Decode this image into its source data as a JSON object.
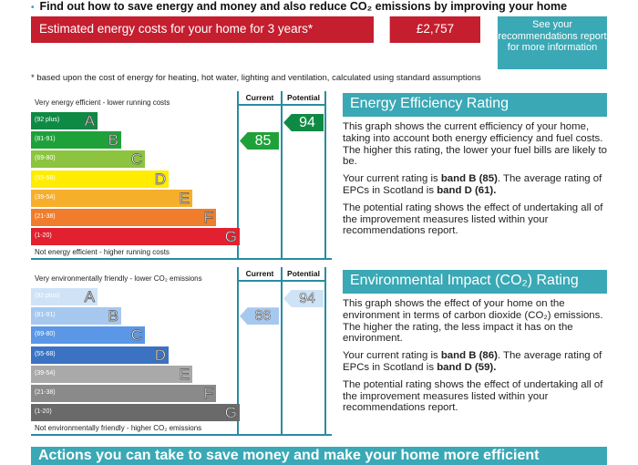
{
  "intro": {
    "bullet": "•",
    "text": "Find out how to save energy and money and also reduce CO₂ emissions by improving your home"
  },
  "cost": {
    "label": "Estimated energy costs for your home for 3 years*",
    "value": "£2,757",
    "see_recommendations": "See your recommendations report for more information",
    "footnote": "* based upon the cost of energy for heating, hot water, lighting and ventilation, calculated using standard assumptions"
  },
  "energy_chart": {
    "top_label": "Very energy efficient - lower running costs",
    "bottom_label": "Not energy efficient - higher running costs",
    "col_current": "Current",
    "col_potential": "Potential",
    "current_value": "85",
    "potential_value": "94",
    "current_color": "#1fa13a",
    "potential_color": "#0f8a44",
    "bands": [
      {
        "letter": "A",
        "range": "(92 plus)",
        "color": "#0f8a44"
      },
      {
        "letter": "B",
        "range": "(81-91)",
        "color": "#1fa13a"
      },
      {
        "letter": "C",
        "range": "(69-80)",
        "color": "#8cc43f"
      },
      {
        "letter": "D",
        "range": "(55-68)",
        "color": "#ffec00"
      },
      {
        "letter": "E",
        "range": "(39-54)",
        "color": "#f7ae2b"
      },
      {
        "letter": "F",
        "range": "(21-38)",
        "color": "#ef7d2c"
      },
      {
        "letter": "G",
        "range": "(1-20)",
        "color": "#e3202f"
      }
    ]
  },
  "eco_chart": {
    "top_label": "Very environmentally friendly - lower CO₂ emissions",
    "bottom_label": "Not environmentally friendly - higher CO₂ emissions",
    "col_current": "Current",
    "col_potential": "Potential",
    "current_value": "86",
    "potential_value": "94",
    "current_color": "#a6c8ef",
    "potential_color": "#cfe3f6",
    "bands": [
      {
        "letter": "A",
        "range": "(92 plus)",
        "color": "#cfe3f6"
      },
      {
        "letter": "B",
        "range": "(81-91)",
        "color": "#a6c8ef"
      },
      {
        "letter": "C",
        "range": "(69-80)",
        "color": "#5a97e6"
      },
      {
        "letter": "D",
        "range": "(55-68)",
        "color": "#3b72c1"
      },
      {
        "letter": "E",
        "range": "(39-54)",
        "color": "#a9a9a9"
      },
      {
        "letter": "F",
        "range": "(21-38)",
        "color": "#8a8a8a"
      },
      {
        "letter": "G",
        "range": "(1-20)",
        "color": "#6a6a6a"
      }
    ]
  },
  "energy_panel": {
    "title": "Energy Efficiency Rating",
    "p1": "This graph shows the current efficiency of your home, taking into account both energy efficiency and fuel costs. The higher this rating, the lower your fuel bills are likely to be.",
    "p2_a": "Your current rating is ",
    "p2_b": "band B (85)",
    "p2_c": ". The average rating of EPCs in Scotland is ",
    "p2_d": "band D (61).",
    "p3": "The potential rating shows the effect of undertaking all of the improvement measures listed within your recommendations report."
  },
  "eco_panel": {
    "title": "Environmental Impact (CO₂) Rating",
    "p1": "This graph shows the effect of your home on the environment in terms of carbon dioxide (CO₂) emissions. The higher the rating, the less impact it has on the environment.",
    "p2_a": "Your current rating is ",
    "p2_b": "band B (86)",
    "p2_c": ". The average rating of EPCs in Scotland is ",
    "p2_d": "band D (59).",
    "p3": "The potential rating shows the effect of undertaking all of the improvement measures listed within your recommendations report."
  },
  "actions": {
    "title": "Actions you can take to save money and make your home more efficient"
  }
}
